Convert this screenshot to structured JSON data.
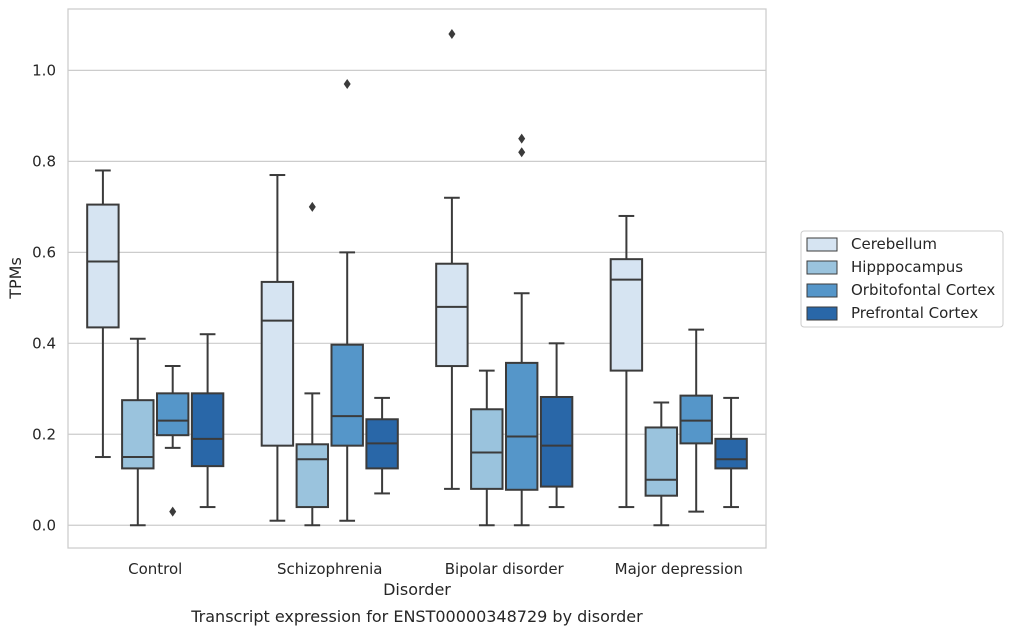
{
  "chart_data": {
    "type": "box",
    "title": "",
    "caption": "Transcript expression for ENST00000348729 by disorder",
    "xlabel": "Disorder",
    "ylabel": "TPMs",
    "ylim": [
      -0.05,
      1.135
    ],
    "yticks": [
      0.0,
      0.2,
      0.4,
      0.6,
      0.8,
      1.0
    ],
    "ytick_labels": [
      "0.0",
      "0.2",
      "0.4",
      "0.6",
      "0.8",
      "1.0"
    ],
    "grid": "horizontal",
    "legend_position": "right",
    "categories": [
      "Control",
      "Schizophrenia",
      "Bipolar disorder",
      "Major depression"
    ],
    "series": [
      {
        "name": "Cerebellum",
        "color": "#d6e4f2",
        "boxes": [
          {
            "q1": 0.435,
            "median": 0.58,
            "q3": 0.705,
            "whisker_low": 0.15,
            "whisker_high": 0.78,
            "outliers": []
          },
          {
            "q1": 0.175,
            "median": 0.45,
            "q3": 0.535,
            "whisker_low": 0.01,
            "whisker_high": 0.77,
            "outliers": []
          },
          {
            "q1": 0.35,
            "median": 0.48,
            "q3": 0.575,
            "whisker_low": 0.08,
            "whisker_high": 0.72,
            "outliers": [
              1.08
            ]
          },
          {
            "q1": 0.34,
            "median": 0.54,
            "q3": 0.585,
            "whisker_low": 0.04,
            "whisker_high": 0.68,
            "outliers": []
          }
        ]
      },
      {
        "name": "Hipppocampus",
        "color": "#9ac3dd",
        "boxes": [
          {
            "q1": 0.125,
            "median": 0.15,
            "q3": 0.275,
            "whisker_low": 0.0,
            "whisker_high": 0.41,
            "outliers": []
          },
          {
            "q1": 0.04,
            "median": 0.145,
            "q3": 0.178,
            "whisker_low": 0.0,
            "whisker_high": 0.29,
            "outliers": [
              0.7
            ]
          },
          {
            "q1": 0.08,
            "median": 0.16,
            "q3": 0.255,
            "whisker_low": 0.0,
            "whisker_high": 0.34,
            "outliers": []
          },
          {
            "q1": 0.065,
            "median": 0.1,
            "q3": 0.215,
            "whisker_low": 0.0,
            "whisker_high": 0.27,
            "outliers": []
          }
        ]
      },
      {
        "name": "Orbitofontal Cortex",
        "color": "#5596c9",
        "boxes": [
          {
            "q1": 0.198,
            "median": 0.23,
            "q3": 0.29,
            "whisker_low": 0.17,
            "whisker_high": 0.35,
            "outliers": [
              0.03
            ]
          },
          {
            "q1": 0.175,
            "median": 0.24,
            "q3": 0.397,
            "whisker_low": 0.01,
            "whisker_high": 0.6,
            "outliers": [
              0.97
            ]
          },
          {
            "q1": 0.078,
            "median": 0.195,
            "q3": 0.357,
            "whisker_low": 0.0,
            "whisker_high": 0.51,
            "outliers": [
              0.85,
              0.82
            ]
          },
          {
            "q1": 0.18,
            "median": 0.23,
            "q3": 0.285,
            "whisker_low": 0.03,
            "whisker_high": 0.43,
            "outliers": []
          }
        ]
      },
      {
        "name": "Prefrontal Cortex",
        "color": "#2967a8",
        "boxes": [
          {
            "q1": 0.13,
            "median": 0.19,
            "q3": 0.29,
            "whisker_low": 0.04,
            "whisker_high": 0.42,
            "outliers": []
          },
          {
            "q1": 0.125,
            "median": 0.18,
            "q3": 0.233,
            "whisker_low": 0.07,
            "whisker_high": 0.28,
            "outliers": []
          },
          {
            "q1": 0.085,
            "median": 0.175,
            "q3": 0.282,
            "whisker_low": 0.04,
            "whisker_high": 0.4,
            "outliers": []
          },
          {
            "q1": 0.125,
            "median": 0.145,
            "q3": 0.19,
            "whisker_low": 0.04,
            "whisker_high": 0.28,
            "outliers": []
          }
        ]
      }
    ]
  }
}
